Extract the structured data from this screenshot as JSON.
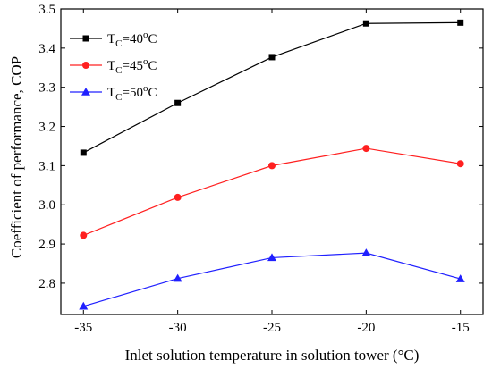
{
  "chart_data": {
    "type": "line",
    "title": "",
    "xlabel": "Inlet solution temperature in solution tower (°C)",
    "ylabel": "Coefficient of performance, COP",
    "x": [
      -35,
      -30,
      -25,
      -20,
      -15
    ],
    "xlim": [
      -36.2,
      -13.8
    ],
    "ylim": [
      2.72,
      3.5
    ],
    "xticks": [
      "-35",
      "-30",
      "-25",
      "-20",
      "-15"
    ],
    "yticks": [
      "2.8",
      "2.9",
      "3.0",
      "3.1",
      "3.2",
      "3.3",
      "3.4",
      "3.5"
    ],
    "grid": false,
    "legend_position": "top-left",
    "series": [
      {
        "name": "TC=40oC",
        "legend": {
          "base": "T",
          "sub": "C",
          "eq": "=40",
          "sup": "o",
          "unit": "C"
        },
        "color": "#000000",
        "marker": "square",
        "values": [
          3.133,
          3.26,
          3.377,
          3.463,
          3.465
        ]
      },
      {
        "name": "TC=45oC",
        "legend": {
          "base": "T",
          "sub": "C",
          "eq": "=45",
          "sup": "o",
          "unit": "C"
        },
        "color": "#ff2020",
        "marker": "circle",
        "values": [
          2.922,
          3.019,
          3.1,
          3.144,
          3.105
        ]
      },
      {
        "name": "TC=50oC",
        "legend": {
          "base": "T",
          "sub": "C",
          "eq": "=50",
          "sup": "o",
          "unit": "C"
        },
        "color": "#2020ff",
        "marker": "triangle",
        "values": [
          2.741,
          2.812,
          2.865,
          2.877,
          2.811
        ]
      }
    ]
  }
}
